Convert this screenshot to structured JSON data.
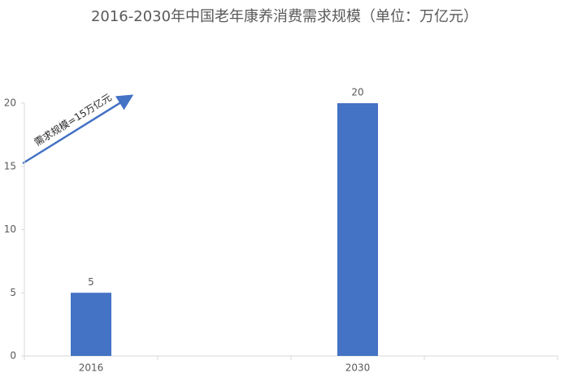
{
  "chart_data": {
    "type": "bar",
    "title": "2016-2030年中国老年康养消费需求规模（单位：万亿元）",
    "categories": [
      "2016",
      null,
      "2030",
      null
    ],
    "values": [
      5,
      null,
      20,
      null
    ],
    "color": "#4472c4",
    "ylim": [
      0,
      20
    ],
    "yticks": [
      0,
      5,
      10,
      15,
      20
    ],
    "grid": false,
    "annotation": "需求规模=15万亿元"
  }
}
